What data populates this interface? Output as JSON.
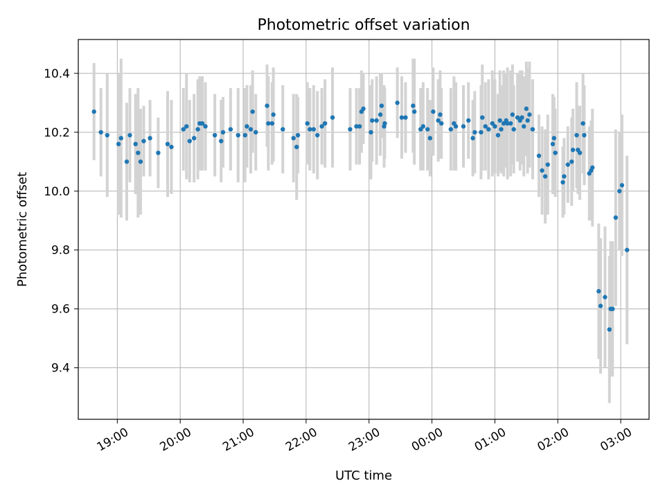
{
  "chart_data": {
    "type": "scatter",
    "title": "Photometric offset variation",
    "xlabel": "UTC time",
    "ylabel": "Photometric offset",
    "x_unit": "UTC hour (x values past 24 wrap to 00:00–03:00)",
    "xlim": [
      18.38,
      27.45
    ],
    "ylim": [
      9.225,
      10.515
    ],
    "grid": true,
    "x_ticks": [
      {
        "value": 19,
        "label": "19:00"
      },
      {
        "value": 20,
        "label": "20:00"
      },
      {
        "value": 21,
        "label": "21:00"
      },
      {
        "value": 22,
        "label": "22:00"
      },
      {
        "value": 23,
        "label": "23:00"
      },
      {
        "value": 24,
        "label": "00:00"
      },
      {
        "value": 25,
        "label": "01:00"
      },
      {
        "value": 26,
        "label": "02:00"
      },
      {
        "value": 27,
        "label": "03:00"
      }
    ],
    "y_ticks": [
      {
        "value": 9.4,
        "label": "9.4"
      },
      {
        "value": 9.6,
        "label": "9.6"
      },
      {
        "value": 9.8,
        "label": "9.8"
      },
      {
        "value": 10.0,
        "label": "10.0"
      },
      {
        "value": 10.2,
        "label": "10.2"
      },
      {
        "value": 10.4,
        "label": "10.4"
      }
    ],
    "colors": {
      "points": "#1f77b4",
      "errorbars": "#d3d3d3",
      "grid": "#b0b0b0"
    },
    "points": [
      [
        18.63,
        10.27,
        0.165
      ],
      [
        18.74,
        10.2,
        0.15
      ],
      [
        18.84,
        10.19,
        0.21
      ],
      [
        19.02,
        10.16,
        0.24
      ],
      [
        19.06,
        10.18,
        0.27
      ],
      [
        19.15,
        10.1,
        0.2
      ],
      [
        19.2,
        10.19,
        0.16
      ],
      [
        19.29,
        10.16,
        0.17
      ],
      [
        19.33,
        10.13,
        0.22
      ],
      [
        19.37,
        10.1,
        0.18
      ],
      [
        19.42,
        10.17,
        0.12
      ],
      [
        19.52,
        10.18,
        0.13
      ],
      [
        19.65,
        10.13,
        0.12
      ],
      [
        19.8,
        10.16,
        0.18
      ],
      [
        19.86,
        10.15,
        0.16
      ],
      [
        20.05,
        10.21,
        0.14
      ],
      [
        20.1,
        10.22,
        0.18
      ],
      [
        20.15,
        10.17,
        0.14
      ],
      [
        20.22,
        10.18,
        0.15
      ],
      [
        20.28,
        10.21,
        0.17
      ],
      [
        20.31,
        10.23,
        0.16
      ],
      [
        20.35,
        10.23,
        0.16
      ],
      [
        20.4,
        10.22,
        0.15
      ],
      [
        20.55,
        10.19,
        0.14
      ],
      [
        20.65,
        10.17,
        0.14
      ],
      [
        20.68,
        10.2,
        0.12
      ],
      [
        20.8,
        10.21,
        0.14
      ],
      [
        20.92,
        10.19,
        0.16
      ],
      [
        21.03,
        10.19,
        0.16
      ],
      [
        21.06,
        10.22,
        0.14
      ],
      [
        21.12,
        10.21,
        0.15
      ],
      [
        21.15,
        10.27,
        0.14
      ],
      [
        21.2,
        10.2,
        0.13
      ],
      [
        21.38,
        10.29,
        0.14
      ],
      [
        21.4,
        10.23,
        0.16
      ],
      [
        21.46,
        10.23,
        0.14
      ],
      [
        21.48,
        10.26,
        0.16
      ],
      [
        21.63,
        10.21,
        0.15
      ],
      [
        21.8,
        10.18,
        0.15
      ],
      [
        21.85,
        10.15,
        0.18
      ],
      [
        21.87,
        10.19,
        0.13
      ],
      [
        22.02,
        10.23,
        0.14
      ],
      [
        22.06,
        10.21,
        0.14
      ],
      [
        22.12,
        10.21,
        0.15
      ],
      [
        22.18,
        10.19,
        0.15
      ],
      [
        22.25,
        10.22,
        0.13
      ],
      [
        22.3,
        10.23,
        0.15
      ],
      [
        22.42,
        10.25,
        0.17
      ],
      [
        22.7,
        10.21,
        0.14
      ],
      [
        22.8,
        10.22,
        0.13
      ],
      [
        22.85,
        10.22,
        0.13
      ],
      [
        22.88,
        10.27,
        0.14
      ],
      [
        22.91,
        10.28,
        0.12
      ],
      [
        23.03,
        10.2,
        0.16
      ],
      [
        23.05,
        10.24,
        0.14
      ],
      [
        23.12,
        10.24,
        0.15
      ],
      [
        23.18,
        10.26,
        0.14
      ],
      [
        23.2,
        10.29,
        0.11
      ],
      [
        23.24,
        10.22,
        0.14
      ],
      [
        23.25,
        10.23,
        0.12
      ],
      [
        23.45,
        10.3,
        0.12
      ],
      [
        23.52,
        10.25,
        0.14
      ],
      [
        23.58,
        10.25,
        0.12
      ],
      [
        23.7,
        10.29,
        0.16
      ],
      [
        23.72,
        10.27,
        0.18
      ],
      [
        23.82,
        10.21,
        0.14
      ],
      [
        23.86,
        10.22,
        0.15
      ],
      [
        23.93,
        10.21,
        0.14
      ],
      [
        23.97,
        10.18,
        0.13
      ],
      [
        24.02,
        10.27,
        0.15
      ],
      [
        24.1,
        10.24,
        0.14
      ],
      [
        24.13,
        10.26,
        0.15
      ],
      [
        24.15,
        10.23,
        0.12
      ],
      [
        24.3,
        10.21,
        0.14
      ],
      [
        24.35,
        10.23,
        0.16
      ],
      [
        24.38,
        10.22,
        0.15
      ],
      [
        24.5,
        10.22,
        0.14
      ],
      [
        24.58,
        10.24,
        0.13
      ],
      [
        24.65,
        10.18,
        0.13
      ],
      [
        24.68,
        10.2,
        0.14
      ],
      [
        24.78,
        10.2,
        0.16
      ],
      [
        24.8,
        10.25,
        0.18
      ],
      [
        24.85,
        10.22,
        0.15
      ],
      [
        24.9,
        10.21,
        0.17
      ],
      [
        24.96,
        10.23,
        0.18
      ],
      [
        25.0,
        10.22,
        0.16
      ],
      [
        25.05,
        10.19,
        0.14
      ],
      [
        25.08,
        10.24,
        0.17
      ],
      [
        25.1,
        10.21,
        0.15
      ],
      [
        25.14,
        10.23,
        0.18
      ],
      [
        25.18,
        10.24,
        0.16
      ],
      [
        25.2,
        10.23,
        0.19
      ],
      [
        25.25,
        10.23,
        0.18
      ],
      [
        25.28,
        10.26,
        0.17
      ],
      [
        25.3,
        10.21,
        0.15
      ],
      [
        25.36,
        10.25,
        0.15
      ],
      [
        25.4,
        10.24,
        0.17
      ],
      [
        25.43,
        10.25,
        0.16
      ],
      [
        25.46,
        10.22,
        0.17
      ],
      [
        25.5,
        10.28,
        0.16
      ],
      [
        25.52,
        10.24,
        0.18
      ],
      [
        25.55,
        10.26,
        0.18
      ],
      [
        25.6,
        10.21,
        0.17
      ],
      [
        25.7,
        10.12,
        0.14
      ],
      [
        25.75,
        10.07,
        0.15
      ],
      [
        25.8,
        10.05,
        0.16
      ],
      [
        25.84,
        10.09,
        0.17
      ],
      [
        25.92,
        10.16,
        0.17
      ],
      [
        25.94,
        10.18,
        0.14
      ],
      [
        25.96,
        10.13,
        0.15
      ],
      [
        26.08,
        10.03,
        0.12
      ],
      [
        26.1,
        10.05,
        0.13
      ],
      [
        26.16,
        10.09,
        0.13
      ],
      [
        26.22,
        10.1,
        0.15
      ],
      [
        26.24,
        10.14,
        0.14
      ],
      [
        26.3,
        10.19,
        0.18
      ],
      [
        26.32,
        10.14,
        0.15
      ],
      [
        26.35,
        10.13,
        0.16
      ],
      [
        26.4,
        10.23,
        0.17
      ],
      [
        26.42,
        10.19,
        0.17
      ],
      [
        26.5,
        10.06,
        0.16
      ],
      [
        26.53,
        10.07,
        0.17
      ],
      [
        26.55,
        10.08,
        0.2
      ],
      [
        26.65,
        9.66,
        0.23
      ],
      [
        26.68,
        9.61,
        0.23
      ],
      [
        26.75,
        9.64,
        0.24
      ],
      [
        26.82,
        9.53,
        0.25
      ],
      [
        26.84,
        9.6,
        0.23
      ],
      [
        26.87,
        9.6,
        0.23
      ],
      [
        26.92,
        9.91,
        0.3
      ],
      [
        26.98,
        10.0,
        0.2
      ],
      [
        27.02,
        10.02,
        0.24
      ],
      [
        27.1,
        9.8,
        0.32
      ]
    ]
  }
}
